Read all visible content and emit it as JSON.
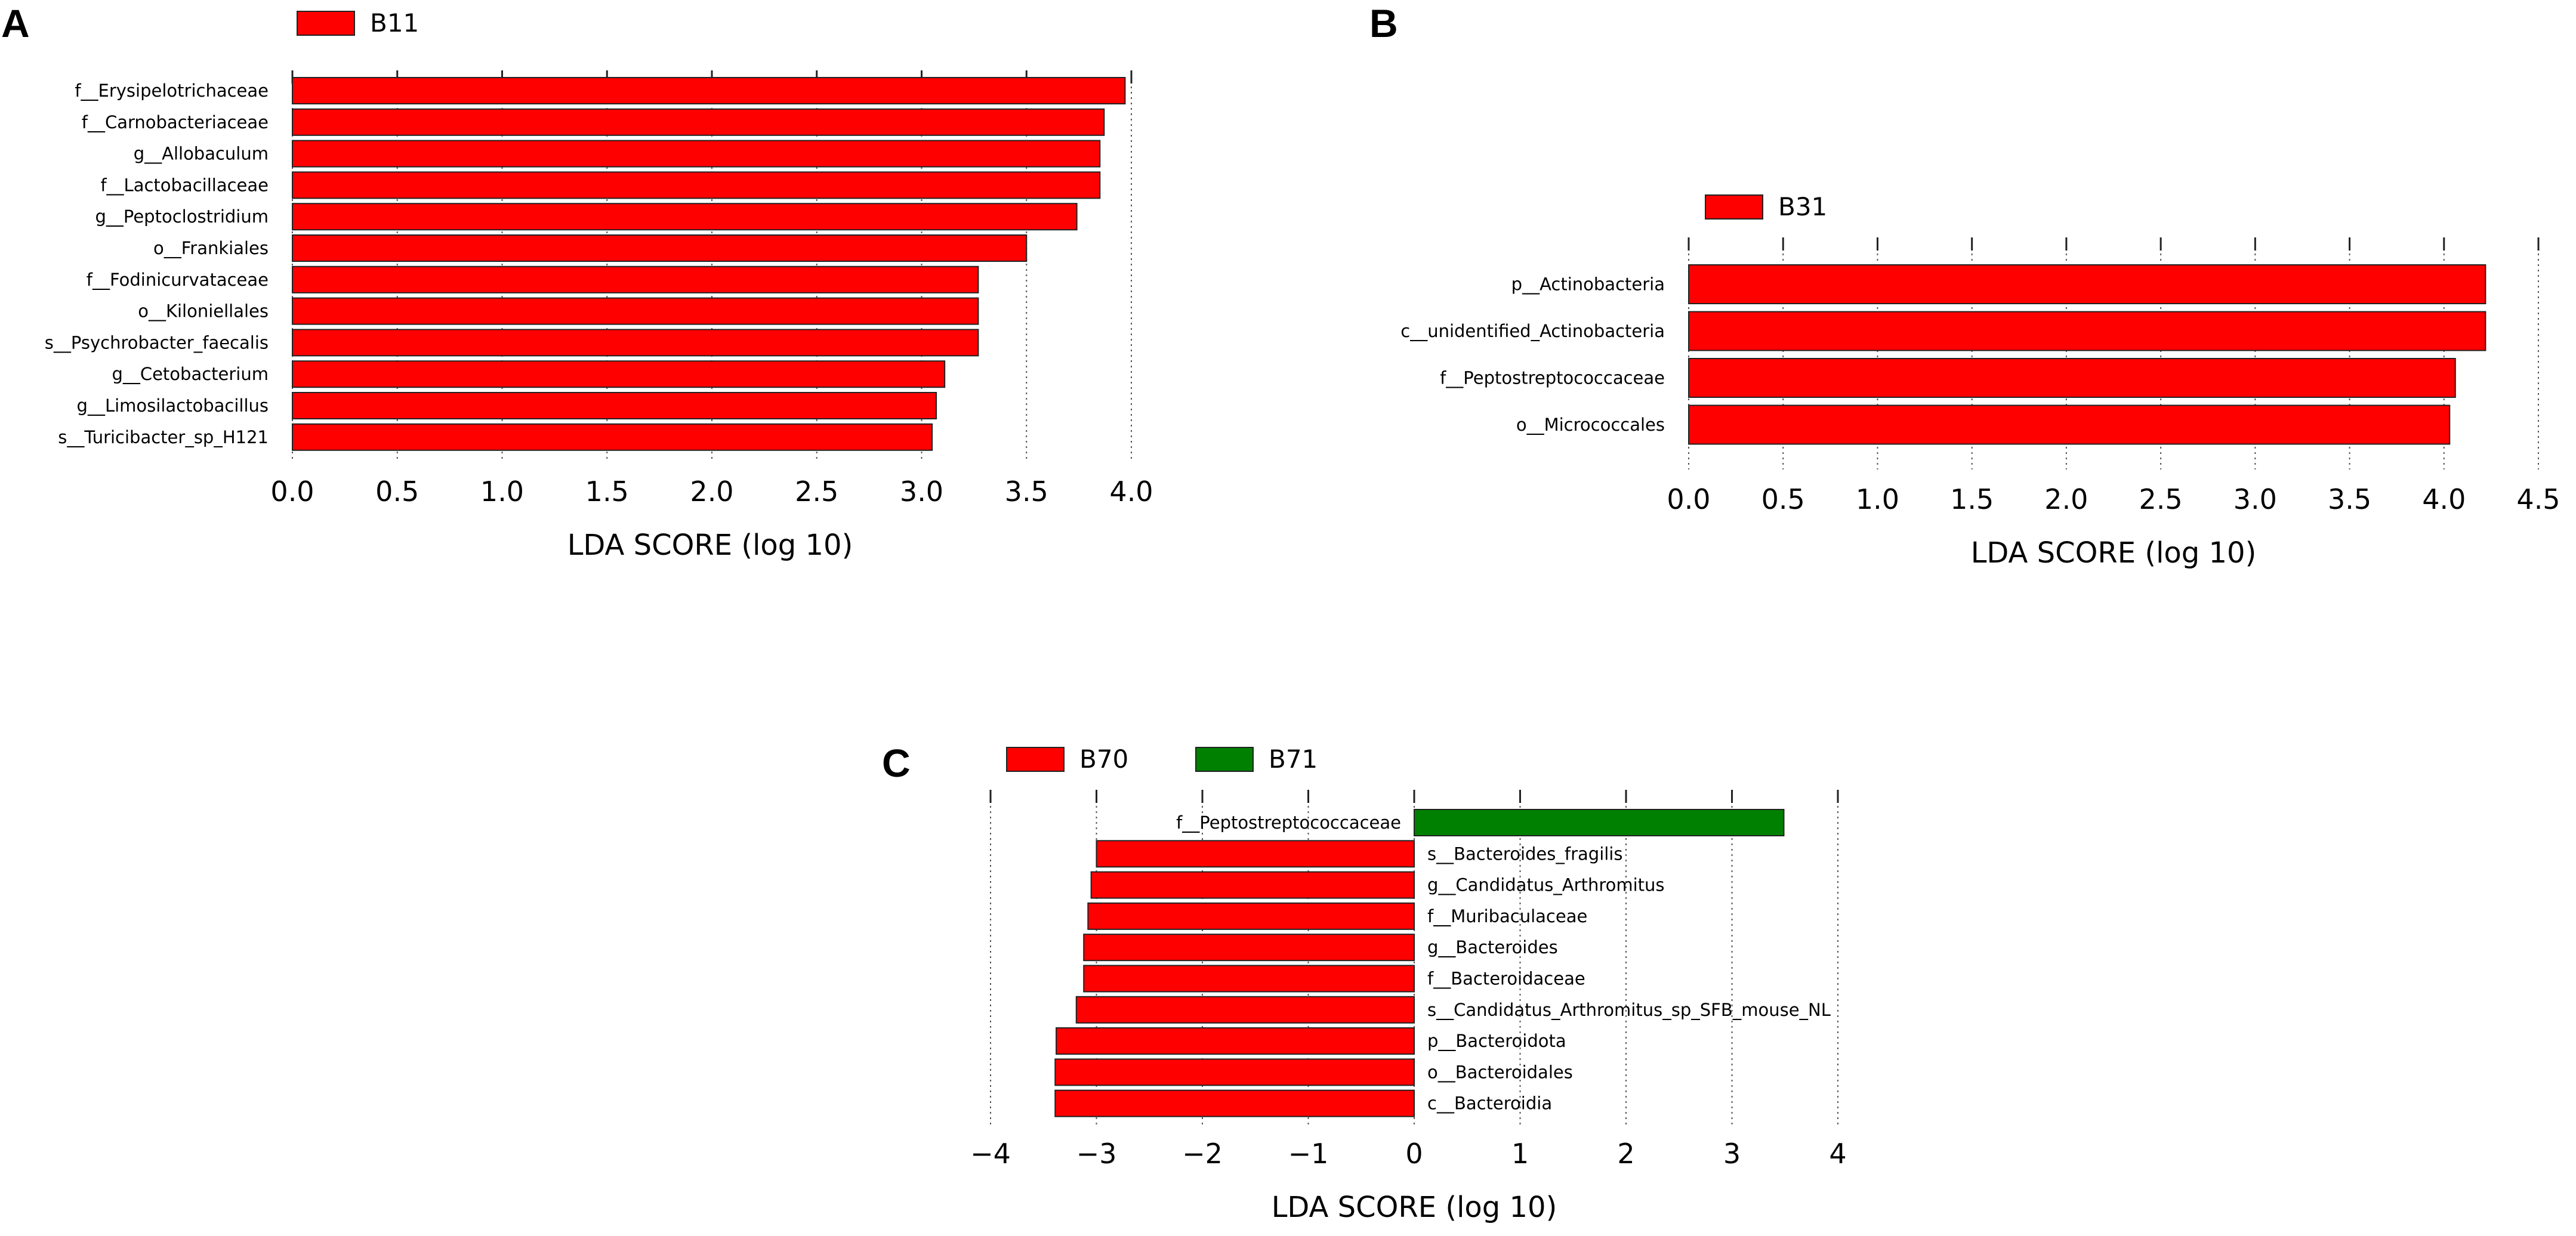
{
  "chart_data": [
    {
      "panel": "A",
      "type": "bar",
      "orientation": "horizontal",
      "legend": [
        {
          "name": "B11",
          "color": "#ff0000"
        }
      ],
      "categories": [
        "f__Erysipelotrichaceae",
        "f__Carnobacteriaceae",
        "g__Allobaculum",
        "f__Lactobacillaceae",
        "g__Peptoclostridium",
        "o__Frankiales",
        "f__Fodinicurvataceae",
        "o__Kiloniellales",
        "s__Psychrobacter_faecalis",
        "g__Cetobacterium",
        "g__Limosilactobacillus",
        "s__Turicibacter_sp_H121"
      ],
      "values": [
        3.97,
        3.87,
        3.85,
        3.85,
        3.74,
        3.5,
        3.27,
        3.27,
        3.27,
        3.11,
        3.07,
        3.05
      ],
      "groups": [
        0,
        0,
        0,
        0,
        0,
        0,
        0,
        0,
        0,
        0,
        0,
        0
      ],
      "colors": [
        "#ff0000"
      ],
      "xlim": [
        0,
        4.0
      ],
      "xticks": [
        "0.0",
        "0.5",
        "1.0",
        "1.5",
        "2.0",
        "2.5",
        "3.0",
        "3.5",
        "4.0"
      ],
      "xlabel": "LDA SCORE (log 10)",
      "label_side": "left",
      "grid": true
    },
    {
      "panel": "B",
      "type": "bar",
      "orientation": "horizontal",
      "legend": [
        {
          "name": "B31",
          "color": "#ff0000"
        }
      ],
      "categories": [
        "p__Actinobacteria",
        "c__unidentified_Actinobacteria",
        "f__Peptostreptococcaceae",
        "o__Micrococcales"
      ],
      "values": [
        4.22,
        4.22,
        4.06,
        4.03
      ],
      "groups": [
        0,
        0,
        0,
        0
      ],
      "colors": [
        "#ff0000"
      ],
      "xlim": [
        0,
        4.5
      ],
      "xticks": [
        "0.0",
        "0.5",
        "1.0",
        "1.5",
        "2.0",
        "2.5",
        "3.0",
        "3.5",
        "4.0",
        "4.5"
      ],
      "xlabel": "LDA SCORE (log 10)",
      "label_side": "left",
      "grid": true
    },
    {
      "panel": "C",
      "type": "bar",
      "orientation": "horizontal",
      "legend": [
        {
          "name": "B70",
          "color": "#ff0000"
        },
        {
          "name": "B71",
          "color": "#008000"
        }
      ],
      "categories": [
        "f__Peptostreptococcaceae",
        "s__Bacteroides_fragilis",
        "g__Candidatus_Arthromitus",
        "f__Muribaculaceae",
        "g__Bacteroides",
        "f__Bacteroidaceae",
        "s__Candidatus_Arthromitus_sp_SFB_mouse_NL",
        "p__Bacteroidota",
        "o__Bacteroidales",
        "c__Bacteroidia"
      ],
      "values": [
        3.49,
        -3.0,
        -3.05,
        -3.08,
        -3.12,
        -3.12,
        -3.19,
        -3.38,
        -3.39,
        -3.39
      ],
      "groups": [
        1,
        0,
        0,
        0,
        0,
        0,
        0,
        0,
        0,
        0
      ],
      "colors": [
        "#ff0000",
        "#008000"
      ],
      "xlim": [
        -4,
        4
      ],
      "xticks": [
        "−4",
        "−3",
        "−2",
        "−1",
        "0",
        "1",
        "2",
        "3",
        "4"
      ],
      "xlabel": "LDA SCORE (log 10)",
      "label_side": "zero",
      "grid": true
    }
  ]
}
